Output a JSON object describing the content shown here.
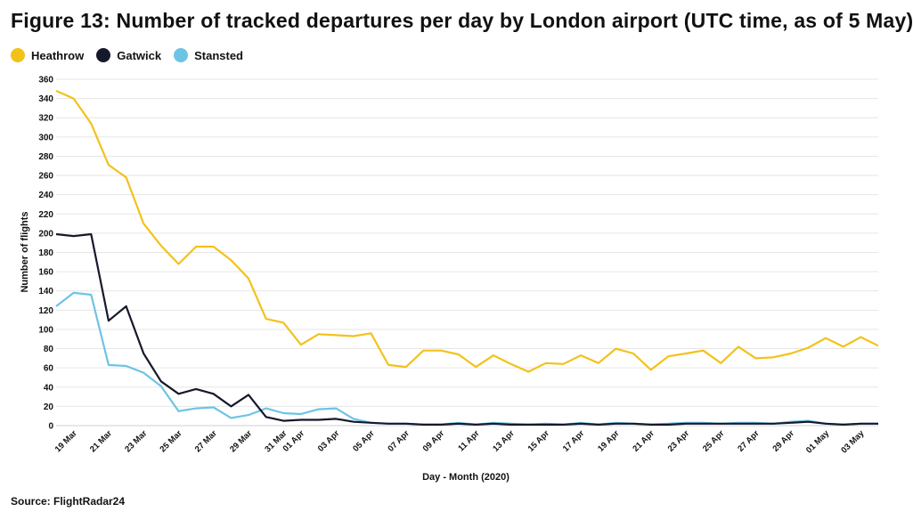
{
  "title": "Figure 13: Number of tracked departures per day by London airport (UTC time, as of 5 May)",
  "source": "Source: FlightRadar24",
  "colors": {
    "Heathrow": "#f3c21a",
    "Gatwick": "#16192c",
    "Stansted": "#6cc4e4",
    "grid": "#e6e6e6"
  },
  "chart_data": {
    "type": "line",
    "xlabel": "Day - Month (2020)",
    "ylabel": "Number of flights",
    "ylim": [
      0,
      360
    ],
    "yticks": [
      0,
      20,
      40,
      60,
      80,
      100,
      120,
      140,
      160,
      180,
      200,
      220,
      240,
      260,
      280,
      300,
      320,
      340,
      360
    ],
    "grid": "horizontal",
    "legend_position": "top-left",
    "x": [
      "18 Mar",
      "19 Mar",
      "20 Mar",
      "21 Mar",
      "22 Mar",
      "23 Mar",
      "24 Mar",
      "25 Mar",
      "26 Mar",
      "27 Mar",
      "28 Mar",
      "29 Mar",
      "30 Mar",
      "31 Mar",
      "01 Apr",
      "02 Apr",
      "03 Apr",
      "04 Apr",
      "05 Apr",
      "06 Apr",
      "07 Apr",
      "08 Apr",
      "09 Apr",
      "10 Apr",
      "11 Apr",
      "12 Apr",
      "13 Apr",
      "14 Apr",
      "15 Apr",
      "16 Apr",
      "17 Apr",
      "18 Apr",
      "19 Apr",
      "20 Apr",
      "21 Apr",
      "22 Apr",
      "23 Apr",
      "24 Apr",
      "25 Apr",
      "26 Apr",
      "27 Apr",
      "28 Apr",
      "29 Apr",
      "30 Apr",
      "01 May",
      "02 May",
      "03 May",
      "04 May"
    ],
    "xtick_labels": [
      "19 Mar",
      "21 Mar",
      "23 Mar",
      "25 Mar",
      "27 Mar",
      "29 Mar",
      "31 Mar",
      "01 Apr",
      "03 Apr",
      "05 Apr",
      "07 Apr",
      "09 Apr",
      "11 Apr",
      "13 Apr",
      "15 Apr",
      "17 Apr",
      "19 Apr",
      "21 Apr",
      "23 Apr",
      "25 Apr",
      "27 Apr",
      "29 Apr",
      "01 May",
      "03 May"
    ],
    "series": [
      {
        "name": "Heathrow",
        "values": [
          348,
          340,
          314,
          271,
          258,
          210,
          187,
          168,
          186,
          186,
          172,
          153,
          111,
          107,
          84,
          95,
          94,
          93,
          96,
          63,
          61,
          78,
          78,
          74,
          61,
          73,
          64,
          56,
          65,
          64,
          73,
          65,
          80,
          75,
          58,
          72,
          75,
          78,
          65,
          82,
          70,
          71,
          75,
          81,
          91,
          82,
          92,
          83
        ]
      },
      {
        "name": "Gatwick",
        "values": [
          199,
          197,
          199,
          109,
          124,
          75,
          46,
          33,
          38,
          33,
          20,
          32,
          9,
          5,
          6,
          6,
          7,
          4,
          3,
          2,
          2,
          1,
          1,
          2,
          1,
          2,
          1,
          1,
          1,
          1,
          2,
          1,
          2,
          2,
          1,
          1,
          2,
          2,
          2,
          2,
          2,
          2,
          3,
          4,
          2,
          1,
          2,
          2
        ]
      },
      {
        "name": "Stansted",
        "values": [
          124,
          138,
          136,
          63,
          62,
          55,
          41,
          15,
          18,
          19,
          8,
          11,
          18,
          13,
          12,
          17,
          18,
          7,
          3,
          2,
          2,
          1,
          1,
          3,
          1,
          3,
          2,
          1,
          2,
          1,
          3,
          1,
          3,
          2,
          1,
          2,
          3,
          3,
          2,
          3,
          3,
          2,
          4,
          5,
          2,
          1,
          2,
          2
        ]
      }
    ]
  }
}
